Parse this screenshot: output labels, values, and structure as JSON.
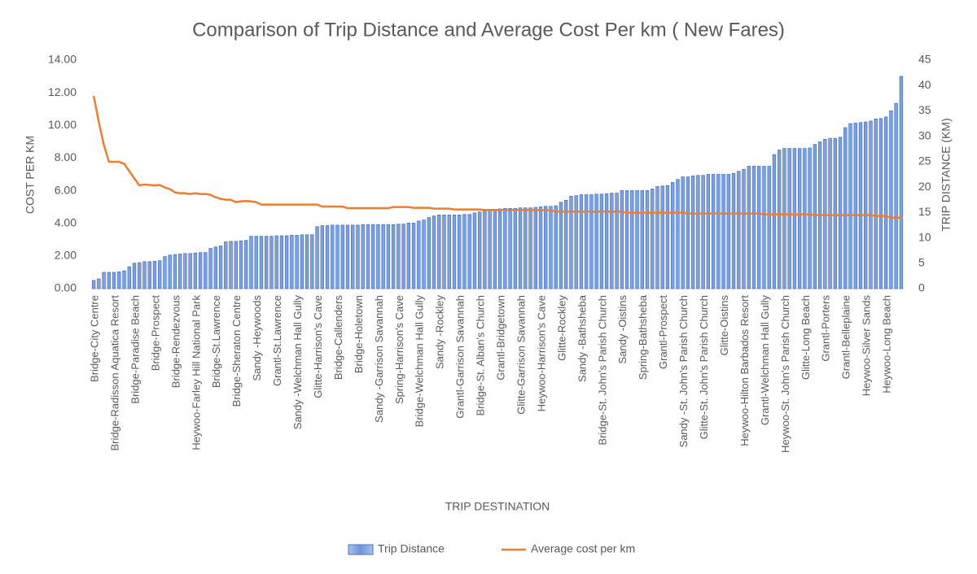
{
  "chart_data": {
    "type": "bar-line",
    "title": "Comparison of Trip Distance and Average Cost Per km ( New Fares)",
    "x_label": "TRIP DESTINATION",
    "y_label": "COST PER KM",
    "y2_label": "TRIP DISTANCE (KM)",
    "categories": [
      "Bridge-City Centre",
      null,
      null,
      null,
      "Bridge-Radisson Aquatica Resort",
      null,
      null,
      null,
      "Bridge-Paradise Beach",
      null,
      null,
      null,
      "Bridge-Prospect",
      null,
      null,
      null,
      "Bridge-Rendezvous",
      null,
      null,
      null,
      "Heywoo-Farley Hill National Park",
      null,
      null,
      null,
      "Bridge-St.Lawrence",
      null,
      null,
      null,
      "Bridge-Sheraton Centre",
      null,
      null,
      null,
      "Sandy -Heywoods",
      null,
      null,
      null,
      "Grantl-St.Lawrence",
      null,
      null,
      null,
      "Sandy -Welchman Hall Gully",
      null,
      null,
      null,
      "Glitte-Harrison's Cave",
      null,
      null,
      null,
      "Bridge-Callenders",
      null,
      null,
      null,
      "Bridge-Holetown",
      null,
      null,
      null,
      "Sandy -Garrison Savannah",
      null,
      null,
      null,
      "Spring-Harrison's Cave",
      null,
      null,
      null,
      "Bridge-Welchman Hall Gully",
      null,
      null,
      null,
      "Sandy -Rockley",
      null,
      null,
      null,
      "Grantl-Garrison Savannah",
      null,
      null,
      null,
      "Bridge-St. Alban's Church",
      null,
      null,
      null,
      "Grantl-Bridgetown",
      null,
      null,
      null,
      "Glitte-Garrison Savannah",
      null,
      null,
      null,
      "Heywoo-Harrison's Cave",
      null,
      null,
      null,
      "Glitte-Rockley",
      null,
      null,
      null,
      "Sandy -Bathsheba",
      null,
      null,
      null,
      "Bridge-St. John's Parish Church",
      null,
      null,
      null,
      "Sandy -Oistins",
      null,
      null,
      null,
      "Spring-Bathsheba",
      null,
      null,
      null,
      "Grantl-Prospect",
      null,
      null,
      null,
      "Sandy -St. John's Parish Church",
      null,
      null,
      null,
      "Glitte-St. John's Parish Church",
      null,
      null,
      null,
      "Glitte-Oistins",
      null,
      null,
      null,
      "Heywoo-Hilton Barbados Resort",
      null,
      null,
      null,
      "Grantl-Welchman Hall Gully",
      null,
      null,
      null,
      "Heywoo-St. John's Parish Church",
      null,
      null,
      null,
      "Glitte-Long Beach",
      null,
      null,
      null,
      "Grantl-Porters",
      null,
      null,
      null,
      "Grantl-Belleplaine",
      null,
      null,
      null,
      "Heywoo-Silver Sands",
      null,
      null,
      null,
      "Heywoo-Long Beach",
      null,
      null,
      null
    ],
    "series": [
      {
        "name": "Trip Distance",
        "type": "bar",
        "axis": "y2",
        "color": "#4472c4",
        "values": [
          1.6,
          1.9,
          3.2,
          3.2,
          3.2,
          3.3,
          3.5,
          4.3,
          5.0,
          5.1,
          5.3,
          5.3,
          5.4,
          5.5,
          6.3,
          6.6,
          6.7,
          6.8,
          6.9,
          6.9,
          7.0,
          7.1,
          7.1,
          7.9,
          8.2,
          8.4,
          9.2,
          9.3,
          9.3,
          9.4,
          9.5,
          10.3,
          10.3,
          10.3,
          10.3,
          10.3,
          10.4,
          10.4,
          10.4,
          10.5,
          10.5,
          10.6,
          10.6,
          10.6,
          12.2,
          12.4,
          12.4,
          12.5,
          12.5,
          12.5,
          12.5,
          12.5,
          12.5,
          12.6,
          12.6,
          12.6,
          12.6,
          12.6,
          12.6,
          12.6,
          12.7,
          12.7,
          12.9,
          12.9,
          13.3,
          13.5,
          14.0,
          14.3,
          14.5,
          14.5,
          14.5,
          14.5,
          14.5,
          14.6,
          14.6,
          14.9,
          15.1,
          15.3,
          15.4,
          15.6,
          15.7,
          15.8,
          15.8,
          15.8,
          15.9,
          15.9,
          15.9,
          16.0,
          16.1,
          16.2,
          16.2,
          16.3,
          17.0,
          17.4,
          18.2,
          18.3,
          18.5,
          18.5,
          18.5,
          18.6,
          18.6,
          18.7,
          18.8,
          18.8,
          19.3,
          19.3,
          19.3,
          19.3,
          19.3,
          19.3,
          19.6,
          20.1,
          20.2,
          20.3,
          20.9,
          21.5,
          22.0,
          22.0,
          22.2,
          22.3,
          22.3,
          22.5,
          22.5,
          22.5,
          22.5,
          22.5,
          22.7,
          23.1,
          23.5,
          24.1,
          24.1,
          24.1,
          24.1,
          24.1,
          26.4,
          27.3,
          27.6,
          27.6,
          27.6,
          27.6,
          27.6,
          27.7,
          28.4,
          28.9,
          29.4,
          29.6,
          29.6,
          29.8,
          31.7,
          32.5,
          32.6,
          32.7,
          32.8,
          33.0,
          33.4,
          33.5,
          33.8,
          35.0,
          36.5,
          41.8
        ]
      },
      {
        "name": "Average cost per km",
        "type": "line",
        "axis": "y",
        "color": "#ed7d31",
        "values": [
          11.81,
          10.2,
          8.8,
          7.77,
          7.77,
          7.77,
          7.65,
          7.2,
          6.75,
          6.33,
          6.38,
          6.35,
          6.33,
          6.35,
          6.2,
          6.1,
          5.9,
          5.85,
          5.85,
          5.8,
          5.85,
          5.8,
          5.8,
          5.75,
          5.6,
          5.5,
          5.45,
          5.45,
          5.3,
          5.35,
          5.37,
          5.35,
          5.3,
          5.15,
          5.15,
          5.15,
          5.15,
          5.15,
          5.15,
          5.15,
          5.15,
          5.15,
          5.15,
          5.15,
          5.15,
          5.03,
          5.03,
          5.03,
          5.03,
          5.03,
          4.93,
          4.93,
          4.93,
          4.93,
          4.93,
          4.93,
          4.93,
          4.93,
          4.93,
          5.0,
          5.0,
          5.0,
          5.0,
          4.95,
          4.95,
          4.95,
          4.95,
          4.9,
          4.9,
          4.9,
          4.9,
          4.85,
          4.85,
          4.85,
          4.85,
          4.85,
          4.85,
          4.82,
          4.82,
          4.82,
          4.82,
          4.82,
          4.82,
          4.82,
          4.82,
          4.82,
          4.82,
          4.8,
          4.8,
          4.8,
          4.8,
          4.72,
          4.72,
          4.72,
          4.72,
          4.72,
          4.72,
          4.72,
          4.72,
          4.72,
          4.72,
          4.72,
          4.72,
          4.72,
          4.72,
          4.65,
          4.65,
          4.65,
          4.65,
          4.65,
          4.65,
          4.65,
          4.65,
          4.65,
          4.65,
          4.65,
          4.65,
          4.6,
          4.6,
          4.6,
          4.6,
          4.6,
          4.6,
          4.6,
          4.6,
          4.6,
          4.6,
          4.6,
          4.6,
          4.6,
          4.6,
          4.6,
          4.55,
          4.55,
          4.55,
          4.55,
          4.55,
          4.55,
          4.55,
          4.55,
          4.55,
          4.55,
          4.5,
          4.5,
          4.5,
          4.5,
          4.5,
          4.5,
          4.5,
          4.5,
          4.5,
          4.5,
          4.5,
          4.5,
          4.45,
          4.45,
          4.45,
          4.35,
          4.35,
          4.35
        ]
      }
    ],
    "ylim": [
      0,
      14
    ],
    "yticks": [
      {
        "value": 0,
        "label": "0.00"
      },
      {
        "value": 2,
        "label": "2.00"
      },
      {
        "value": 4,
        "label": "4.00"
      },
      {
        "value": 6,
        "label": "6.00"
      },
      {
        "value": 8,
        "label": "8.00"
      },
      {
        "value": 10,
        "label": "10.00"
      },
      {
        "value": 12,
        "label": "12.00"
      },
      {
        "value": 14,
        "label": "14.00"
      }
    ],
    "y2lim": [
      0,
      45
    ],
    "y2ticks": [
      0,
      5,
      10,
      15,
      20,
      25,
      30,
      35,
      40,
      45
    ],
    "legend": "bottom"
  }
}
